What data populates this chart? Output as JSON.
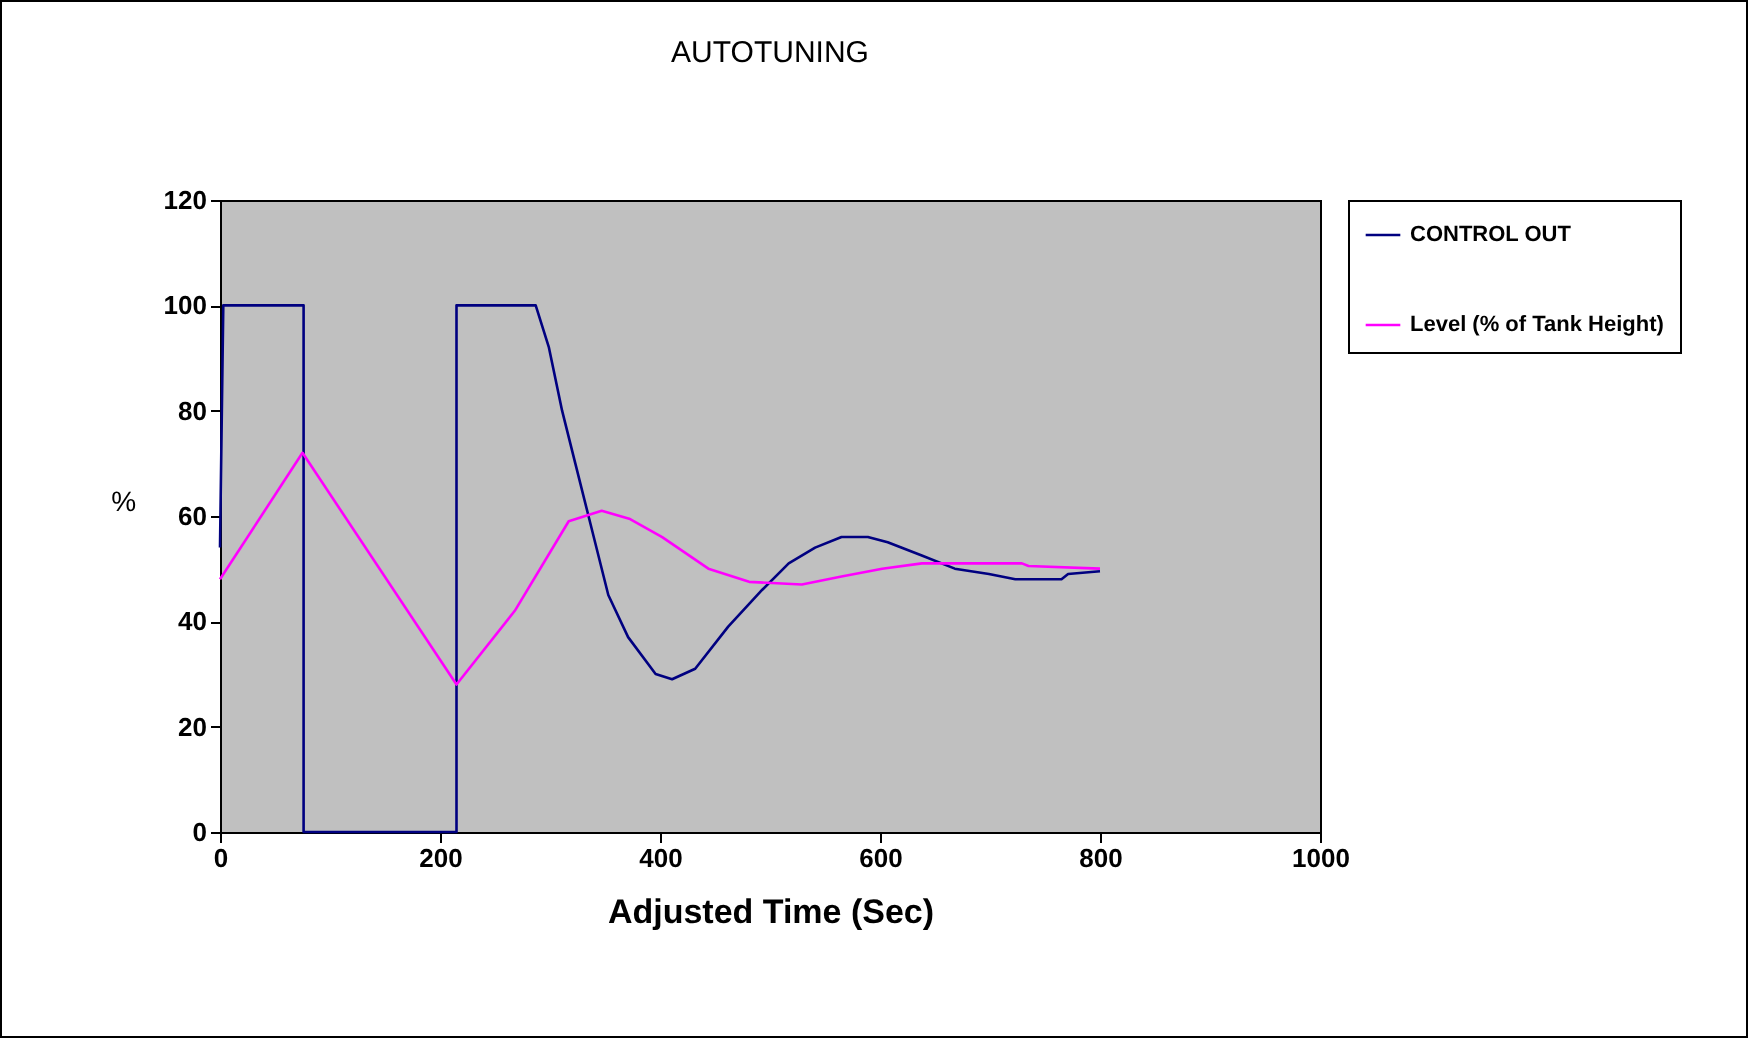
{
  "chart_data": {
    "type": "line",
    "title": "AUTOTUNING",
    "xlabel": "Adjusted Time (Sec)",
    "ylabel": "%",
    "xlim": [
      0,
      1000
    ],
    "xticks": [
      0,
      200,
      400,
      600,
      800,
      1000
    ],
    "ylim": [
      0,
      120
    ],
    "yticks": [
      0,
      20,
      40,
      60,
      80,
      100,
      120
    ],
    "grid": false,
    "legend": "right",
    "series": [
      {
        "name": "CONTROL OUT",
        "color": "#000080",
        "x": [
          0,
          3,
          76,
          76,
          215,
          215,
          287,
          299,
          311,
          323,
          335,
          353,
          371,
          396,
          411,
          432,
          462,
          493,
          517,
          541,
          565,
          589,
          607,
          638,
          668,
          699,
          723,
          765,
          771,
          800
        ],
        "values": [
          54,
          100,
          100,
          0,
          0,
          100,
          100,
          92,
          80,
          70,
          60,
          45,
          37,
          30,
          29,
          31,
          39,
          46,
          51,
          54,
          56,
          56,
          55,
          52.5,
          50,
          49,
          48,
          48,
          49,
          49.5
        ]
      },
      {
        "name": "Level (% of Tank Height)",
        "color": "#ff00ff",
        "x": [
          0,
          75,
          215,
          268,
          317,
          347,
          372,
          402,
          444,
          481,
          529,
          565,
          602,
          638,
          729,
          735,
          800
        ],
        "values": [
          48,
          72,
          28,
          42,
          59,
          61,
          59.5,
          56,
          50,
          47.5,
          47,
          48.5,
          50,
          51,
          51,
          50.5,
          50
        ]
      }
    ]
  }
}
